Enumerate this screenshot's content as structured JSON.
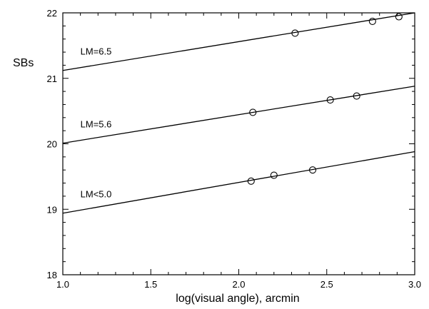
{
  "chart_data": {
    "type": "scatter",
    "title": "",
    "xlabel": "log(visual angle), arcmin",
    "ylabel": "SBs",
    "xlim": [
      1.0,
      3.0
    ],
    "ylim": [
      18,
      22
    ],
    "x_major_ticks": [
      "1.0",
      "1.5",
      "2.0",
      "2.5",
      "3.0"
    ],
    "y_major_ticks": [
      "18",
      "19",
      "20",
      "21",
      "22"
    ],
    "x_minor_step": 0.1,
    "y_minor_step": 0.2,
    "grid": false,
    "series": [
      {
        "name": "LM=6.5",
        "points": [
          [
            2.32,
            21.69
          ],
          [
            2.76,
            21.87
          ],
          [
            2.91,
            21.94
          ]
        ],
        "fit": {
          "x": [
            1.0,
            3.0
          ],
          "y": [
            21.12,
            22.0
          ]
        }
      },
      {
        "name": "LM=5.6",
        "points": [
          [
            2.08,
            20.48
          ],
          [
            2.52,
            20.67
          ],
          [
            2.67,
            20.73
          ]
        ],
        "fit": {
          "x": [
            1.0,
            3.0
          ],
          "y": [
            20.01,
            20.88
          ]
        }
      },
      {
        "name": "LM<5.0",
        "points": [
          [
            2.07,
            19.43
          ],
          [
            2.2,
            19.52
          ],
          [
            2.42,
            19.6
          ]
        ],
        "fit": {
          "x": [
            1.0,
            3.0
          ],
          "y": [
            18.94,
            19.88
          ]
        }
      }
    ]
  }
}
